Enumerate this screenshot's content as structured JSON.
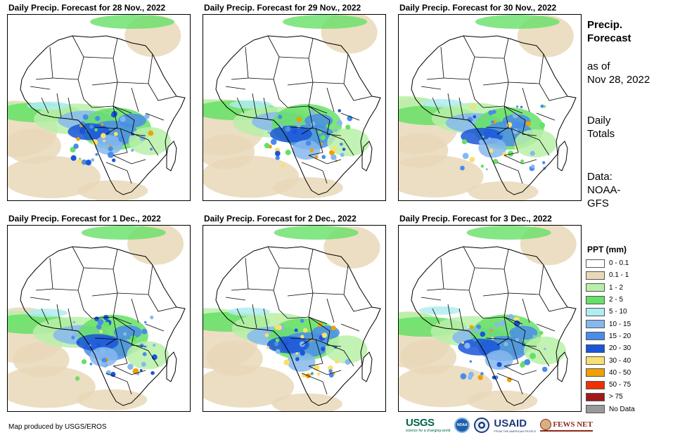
{
  "panels": [
    {
      "title": "Daily Precip. Forecast for 28 Nov., 2022",
      "seed": 1
    },
    {
      "title": "Daily Precip. Forecast for 29 Nov., 2022",
      "seed": 2
    },
    {
      "title": "Daily Precip. Forecast for 30 Nov., 2022",
      "seed": 3
    },
    {
      "title": "Daily Precip. Forecast for 1 Dec., 2022",
      "seed": 4
    },
    {
      "title": "Daily Precip. Forecast for 2 Dec., 2022",
      "seed": 5
    },
    {
      "title": "Daily Precip. Forecast for 3 Dec., 2022",
      "seed": 6
    }
  ],
  "side": {
    "title_line1": "Precip.",
    "title_line2": "Forecast",
    "asof_line1": "as of",
    "asof_line2": "Nov 28, 2022",
    "totals_line1": "Daily",
    "totals_line2": "Totals",
    "data_line1": "Data:",
    "data_line2": "NOAA-",
    "data_line3": "GFS"
  },
  "legend": {
    "title": "PPT (mm)",
    "items": [
      {
        "label": "0 - 0.1",
        "color": "#ffffff"
      },
      {
        "label": "0.1 - 1",
        "color": "#e9d8b8"
      },
      {
        "label": "1 - 2",
        "color": "#b8f0a8"
      },
      {
        "label": "2 - 5",
        "color": "#66e066"
      },
      {
        "label": "5 - 10",
        "color": "#b0ecf0"
      },
      {
        "label": "10 - 15",
        "color": "#86b8ee"
      },
      {
        "label": "15 - 20",
        "color": "#4a8ce8"
      },
      {
        "label": "20 - 30",
        "color": "#1a55d8"
      },
      {
        "label": "30 - 40",
        "color": "#f8e070"
      },
      {
        "label": "40 - 50",
        "color": "#f0a000"
      },
      {
        "label": "50 - 75",
        "color": "#f03000"
      },
      {
        "label": "> 75",
        "color": "#a01818"
      },
      {
        "label": "No Data",
        "color": "#999999"
      }
    ]
  },
  "footer": {
    "credit": "Map produced by USGS/EROS",
    "logo_usgs": "USGS",
    "logo_usgs_sub": "science for a changing world",
    "logo_noaa": "NOAA",
    "logo_usaid": "USAID",
    "logo_usaid_sub": "FROM THE AMERICAN PEOPLE",
    "logo_fews": "FEWS NET"
  }
}
